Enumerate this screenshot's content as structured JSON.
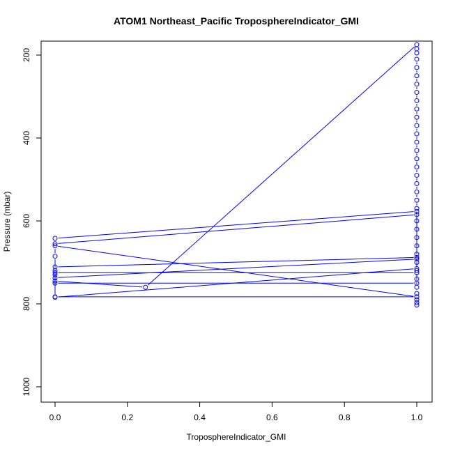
{
  "chart_data": {
    "type": "line",
    "title": "ATOM1 Northeast_Pacific TroposphereIndicator_GMI",
    "xlabel": "TroposphereIndicator_GMI",
    "ylabel": "Pressure (mbar)",
    "xlim": [
      0,
      1
    ],
    "ylim": [
      1000,
      180
    ],
    "y_inverted": true,
    "grid": false,
    "x_ticks": [
      "0.0",
      "0.2",
      "0.4",
      "0.6",
      "0.8",
      "1.0"
    ],
    "y_ticks": [
      "200",
      "400",
      "600",
      "800",
      "1000"
    ],
    "color": "#0000ff",
    "series": [
      {
        "values": [
          [
            1.0,
            577
          ],
          [
            0.0,
            642
          ],
          [
            0.0,
            655
          ],
          [
            1.0,
            585
          ],
          [
            1.0,
            688
          ],
          [
            0.0,
            711
          ],
          [
            0.0,
            737
          ],
          [
            1.0,
            692
          ],
          [
            1.0,
            715
          ],
          [
            0.0,
            784
          ],
          [
            0.0,
            725
          ],
          [
            1.0,
            725
          ],
          [
            1.0,
            750
          ],
          [
            0.0,
            750
          ],
          [
            0.0,
            783
          ],
          [
            1.0,
            783
          ],
          [
            0.0,
            660
          ],
          [
            0.0,
            685
          ],
          [
            0.0,
            720
          ],
          [
            0.0,
            730
          ],
          [
            0.0,
            745
          ],
          [
            0.25,
            760
          ],
          [
            1.0,
            175
          ],
          [
            1.0,
            185
          ],
          [
            1.0,
            195
          ],
          [
            1.0,
            210
          ],
          [
            1.0,
            230
          ],
          [
            1.0,
            250
          ],
          [
            1.0,
            270
          ],
          [
            1.0,
            290
          ],
          [
            1.0,
            310
          ],
          [
            1.0,
            330
          ],
          [
            1.0,
            350
          ],
          [
            1.0,
            370
          ],
          [
            1.0,
            390
          ],
          [
            1.0,
            410
          ],
          [
            1.0,
            430
          ],
          [
            1.0,
            450
          ],
          [
            1.0,
            470
          ],
          [
            1.0,
            490
          ],
          [
            1.0,
            510
          ],
          [
            1.0,
            530
          ],
          [
            1.0,
            550
          ],
          [
            1.0,
            570
          ],
          [
            1.0,
            600
          ],
          [
            1.0,
            620
          ],
          [
            1.0,
            640
          ],
          [
            1.0,
            660
          ],
          [
            1.0,
            680
          ],
          [
            1.0,
            700
          ],
          [
            1.0,
            720
          ],
          [
            1.0,
            740
          ],
          [
            1.0,
            760
          ],
          [
            1.0,
            775
          ],
          [
            1.0,
            790
          ],
          [
            1.0,
            797
          ],
          [
            1.0,
            803
          ]
        ]
      }
    ]
  }
}
